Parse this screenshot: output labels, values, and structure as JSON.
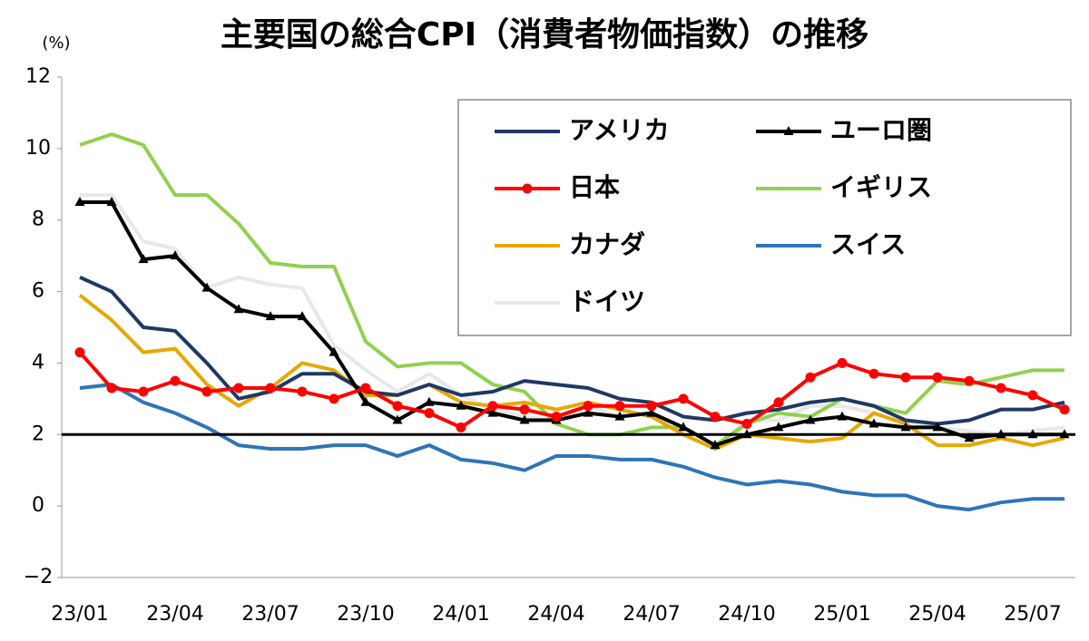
{
  "chart_data": {
    "type": "line",
    "title": "主要国の総合CPI（消費者物価指数）の推移",
    "y_unit": "(%)",
    "categories": [
      "23/01",
      null,
      null,
      "23/04",
      null,
      null,
      "23/07",
      null,
      null,
      "23/10",
      null,
      null,
      "24/01",
      null,
      null,
      "24/04",
      null,
      null,
      "24/07",
      null,
      null,
      "24/10",
      null,
      null,
      "25/01",
      null,
      null,
      "25/04",
      null,
      null,
      "25/07",
      null
    ],
    "ylim": [
      -2,
      12
    ],
    "yticks": [
      {
        "value": -2,
        "label": "−2"
      },
      0,
      2,
      4,
      6,
      8,
      10,
      12
    ],
    "grid": false,
    "reference_line": 2,
    "legend_position": "upper right",
    "series": [
      {
        "name": "アメリカ",
        "color": "#1f3864",
        "marker": "none",
        "values": [
          6.4,
          6.0,
          5.0,
          4.9,
          4.0,
          3.0,
          3.2,
          3.7,
          3.7,
          3.2,
          3.1,
          3.4,
          3.1,
          3.2,
          3.5,
          3.4,
          3.3,
          3.0,
          2.9,
          2.5,
          2.4,
          2.6,
          2.7,
          2.9,
          3.0,
          2.8,
          2.4,
          2.3,
          2.4,
          2.7,
          2.7,
          2.9
        ]
      },
      {
        "name": "ユーロ圏",
        "color": "#000000",
        "marker": "triangle",
        "values": [
          8.5,
          8.5,
          6.9,
          7.0,
          6.1,
          5.5,
          5.3,
          5.3,
          4.3,
          2.9,
          2.4,
          2.9,
          2.8,
          2.6,
          2.4,
          2.4,
          2.6,
          2.5,
          2.6,
          2.2,
          1.7,
          2.0,
          2.2,
          2.4,
          2.5,
          2.3,
          2.2,
          2.2,
          1.9,
          2.0,
          2.0,
          2.0
        ]
      },
      {
        "name": "日本",
        "color": "#ff0000",
        "marker": "circle",
        "values": [
          4.3,
          3.3,
          3.2,
          3.5,
          3.2,
          3.3,
          3.3,
          3.2,
          3.0,
          3.3,
          2.8,
          2.6,
          2.2,
          2.8,
          2.7,
          2.5,
          2.8,
          2.8,
          2.8,
          3.0,
          2.5,
          2.3,
          2.9,
          3.6,
          4.0,
          3.7,
          3.6,
          3.6,
          3.5,
          3.3,
          3.1,
          2.7
        ]
      },
      {
        "name": "イギリス",
        "color": "#92d050",
        "marker": "none",
        "values": [
          10.1,
          10.4,
          10.1,
          8.7,
          8.7,
          7.9,
          6.8,
          6.7,
          6.7,
          4.6,
          3.9,
          4.0,
          4.0,
          3.4,
          3.2,
          2.3,
          2.0,
          2.0,
          2.2,
          2.2,
          1.7,
          2.3,
          2.6,
          2.5,
          3.0,
          2.8,
          2.6,
          3.5,
          3.4,
          3.6,
          3.8,
          3.8
        ]
      },
      {
        "name": "カナダ",
        "color": "#e6a800",
        "marker": "none",
        "values": [
          5.9,
          5.2,
          4.3,
          4.4,
          3.4,
          2.8,
          3.3,
          4.0,
          3.8,
          3.1,
          3.1,
          3.4,
          2.9,
          2.8,
          2.9,
          2.7,
          2.9,
          2.7,
          2.5,
          2.0,
          1.6,
          2.0,
          1.9,
          1.8,
          1.9,
          2.6,
          2.3,
          1.7,
          1.7,
          1.9,
          1.7,
          1.9
        ]
      },
      {
        "name": "スイス",
        "color": "#2e75b6",
        "marker": "none",
        "values": [
          3.3,
          3.4,
          2.9,
          2.6,
          2.2,
          1.7,
          1.6,
          1.6,
          1.7,
          1.7,
          1.4,
          1.7,
          1.3,
          1.2,
          1.0,
          1.4,
          1.4,
          1.3,
          1.3,
          1.1,
          0.8,
          0.6,
          0.7,
          0.6,
          0.4,
          0.3,
          0.3,
          0.0,
          -0.1,
          0.1,
          0.2,
          0.2
        ]
      },
      {
        "name": "ドイツ",
        "color": "#e8e8e8",
        "marker": "none",
        "values": [
          8.7,
          8.7,
          7.4,
          7.2,
          6.1,
          6.4,
          6.2,
          6.1,
          4.5,
          3.8,
          3.2,
          3.7,
          3.1,
          2.7,
          2.5,
          2.4,
          2.8,
          2.5,
          2.6,
          2.0,
          1.6,
          2.4,
          2.4,
          2.8,
          2.8,
          2.6,
          2.3,
          2.2,
          2.1,
          2.0,
          2.1,
          2.2
        ]
      }
    ]
  }
}
